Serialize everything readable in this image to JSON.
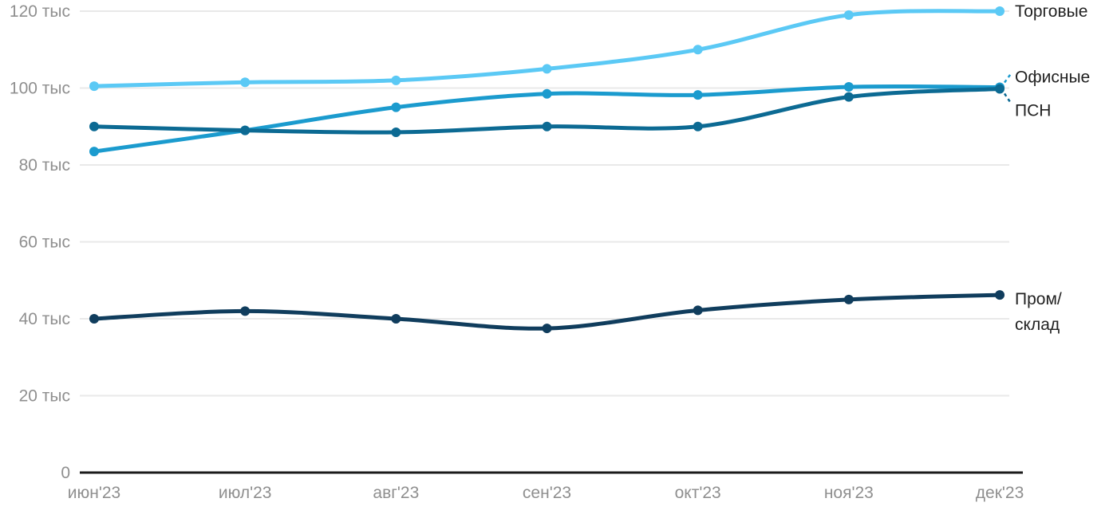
{
  "chart_data": {
    "type": "line",
    "title": "",
    "x_categories": [
      "июн'23",
      "июл'23",
      "авг'23",
      "сен'23",
      "окт'23",
      "ноя'23",
      "дек'23"
    ],
    "y_unit": "тыс",
    "ylim": [
      0,
      120
    ],
    "grid": "horizontal",
    "legend_position": "right-of-line-end",
    "yticks": [
      {
        "value": 120,
        "label": "120 тыс"
      },
      {
        "value": 100,
        "label": "100 тыс"
      },
      {
        "value": 80,
        "label": "80 тыс"
      },
      {
        "value": 60,
        "label": "60 тыс"
      },
      {
        "value": 40,
        "label": "40 тыс"
      },
      {
        "value": 20,
        "label": "20 тыс"
      },
      {
        "value": 0,
        "label": "0"
      }
    ],
    "series": [
      {
        "name": "Торговые",
        "slug": "torgovye",
        "color": "#5BC9F5",
        "values": [
          100.5,
          101.5,
          102,
          105,
          110,
          119,
          120
        ],
        "label": {
          "dy": 0,
          "leader": "none"
        }
      },
      {
        "name": "Офисные",
        "slug": "ofisnye",
        "color": "#1B9BCE",
        "values": [
          83.5,
          89,
          95,
          98.5,
          98.2,
          100.3,
          100.2
        ],
        "label": {
          "dy": -13,
          "leader": "up"
        }
      },
      {
        "name": "ПСН",
        "slug": "psn",
        "color": "#0C6A93",
        "values": [
          90,
          89,
          88.5,
          90,
          90,
          97.7,
          99.8
        ],
        "label": {
          "dy": 27,
          "leader": "down"
        }
      },
      {
        "name": "Пром/склад",
        "slug": "prom-sklad",
        "color": "#103D5D",
        "values": [
          40,
          42,
          40,
          37.5,
          42.2,
          45,
          46.2
        ],
        "label": {
          "dy": 12,
          "leader": "none",
          "wrap": true
        }
      }
    ],
    "colors": {
      "gridline": "#E9E9E9",
      "axis_line": "#1B1B1B",
      "tick_label": "#8F8F8F",
      "series_label": "#222222",
      "background": "#FFFFFF"
    }
  }
}
